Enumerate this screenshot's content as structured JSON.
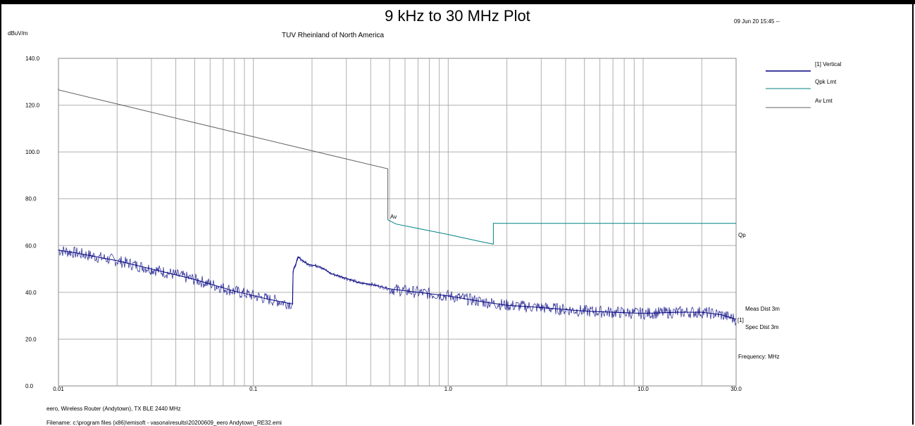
{
  "figure": {
    "title": "9 kHz to 30 MHz Plot",
    "subtitle": "TUV Rheinland of North America",
    "date": "09 Jun 20 15:45 --",
    "y_unit": "dBuV/m",
    "footer_line1": "eero, Wireless Router (Andytown), TX BLE 2440 MHz",
    "footer_line2": "Filename: c:\\program files (x86)\\emisoft - vasona\\results\\20200609_eero Andytown_RE32.emi"
  },
  "annotations": {
    "av_marker": "Av",
    "qp_marker": "Qp",
    "trace_marker": "[1]",
    "meas_dist": "Meas Dist 3m",
    "spec_dist": "Spec Dist 3m",
    "freq_unit": "Frequency: MHz"
  },
  "colors": {
    "vertical": "#000080",
    "qpk": "#008080",
    "av": "#606060",
    "grid": "#b0b0b0"
  },
  "chart_data": {
    "type": "line",
    "x_scale": "log",
    "xlim": [
      0.01,
      30
    ],
    "ylim": [
      0,
      140
    ],
    "grid": true,
    "legend_position": "right",
    "y_ticks": [
      "140.0",
      "120.0",
      "100.0",
      "80.0",
      "60.0",
      "40.0",
      "20.0",
      "0.0"
    ],
    "y_tick_values": [
      140,
      120,
      100,
      80,
      60,
      40,
      20,
      0
    ],
    "x_ticks": [
      "0.01",
      "0.1",
      "1.0",
      "10.0",
      "30.0"
    ],
    "x_tick_values": [
      0.01,
      0.1,
      1,
      10,
      30
    ],
    "series": [
      {
        "name": "[1] Vertical",
        "x": [
          0.01,
          0.012,
          0.015,
          0.02,
          0.03,
          0.05,
          0.08,
          0.12,
          0.159,
          0.16,
          0.17,
          0.19,
          0.22,
          0.25,
          0.3,
          0.35,
          0.4,
          0.5,
          0.7,
          1.0,
          1.5,
          2.0,
          3.0,
          5.0,
          7.0,
          10.0,
          15.0,
          20.0,
          25.0,
          30.0
        ],
        "y": [
          58,
          57,
          55.5,
          53.5,
          50,
          45.5,
          40.5,
          37,
          35,
          49,
          55,
          52,
          51,
          48,
          46,
          44,
          43.5,
          41.5,
          40,
          38.5,
          36,
          34.5,
          33.5,
          32,
          31.5,
          31,
          31.5,
          31.5,
          30.5,
          28.5
        ]
      },
      {
        "name": "Qpk Lmt",
        "x": [
          0.49,
          0.54,
          0.7,
          1.0,
          1.5,
          1.705,
          1.705,
          3.0,
          10.0,
          30.0
        ],
        "y": [
          71,
          69.2,
          67.3,
          64.7,
          61.5,
          60.6,
          69.5,
          69.5,
          69.5,
          69.5
        ]
      },
      {
        "name": "Av Lmt",
        "x": [
          0.009,
          0.01,
          0.02,
          0.05,
          0.1,
          0.2,
          0.3,
          0.49,
          0.49
        ],
        "y": [
          127.5,
          126.5,
          120.5,
          112.5,
          106.5,
          100.5,
          97,
          92.8,
          71
        ]
      }
    ]
  }
}
